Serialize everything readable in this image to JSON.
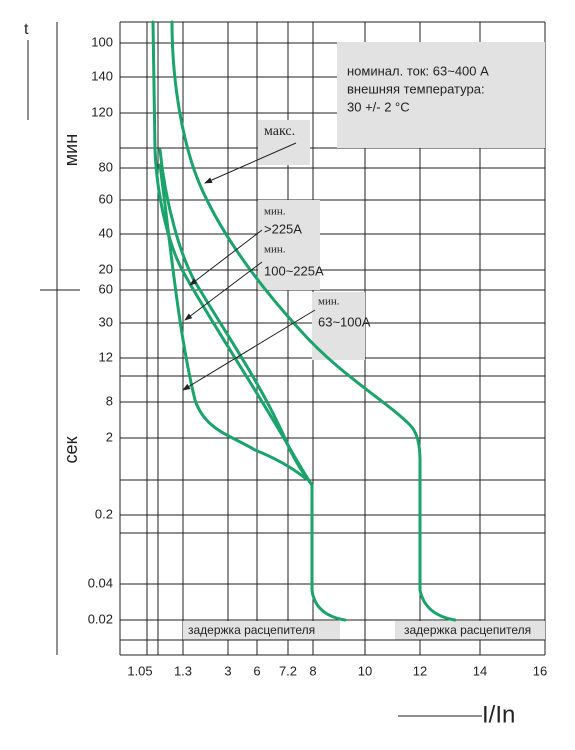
{
  "y_axis": {
    "top_label": "t",
    "minutes_label": "мин",
    "seconds_label": "сек",
    "minute_ticks": [
      "100",
      "140",
      "120",
      "80",
      "60",
      "40",
      "20"
    ],
    "second_ticks": [
      "60",
      "30",
      "12",
      "8",
      "2",
      "0.2",
      "0.04",
      "0.02"
    ]
  },
  "x_axis": {
    "ticks": [
      "1.05",
      "1.3",
      "3",
      "6",
      "7.2",
      "8",
      "10",
      "12",
      "14",
      "16"
    ],
    "label": "I/In"
  },
  "info": {
    "lines": [
      "номинал. ток: 63~400 A",
      "внешняя температура:",
      "30 +/- 2 °C"
    ]
  },
  "curve_labels": [
    {
      "title": "макс."
    },
    {
      "title": "мин.",
      "range": ">225A"
    },
    {
      "title": "мин.",
      "range": "100~225A"
    },
    {
      "title": "мин.",
      "range": "63~100A"
    }
  ],
  "delay_labels": [
    "задержка расцепителя",
    "задержка расцепителя"
  ]
}
